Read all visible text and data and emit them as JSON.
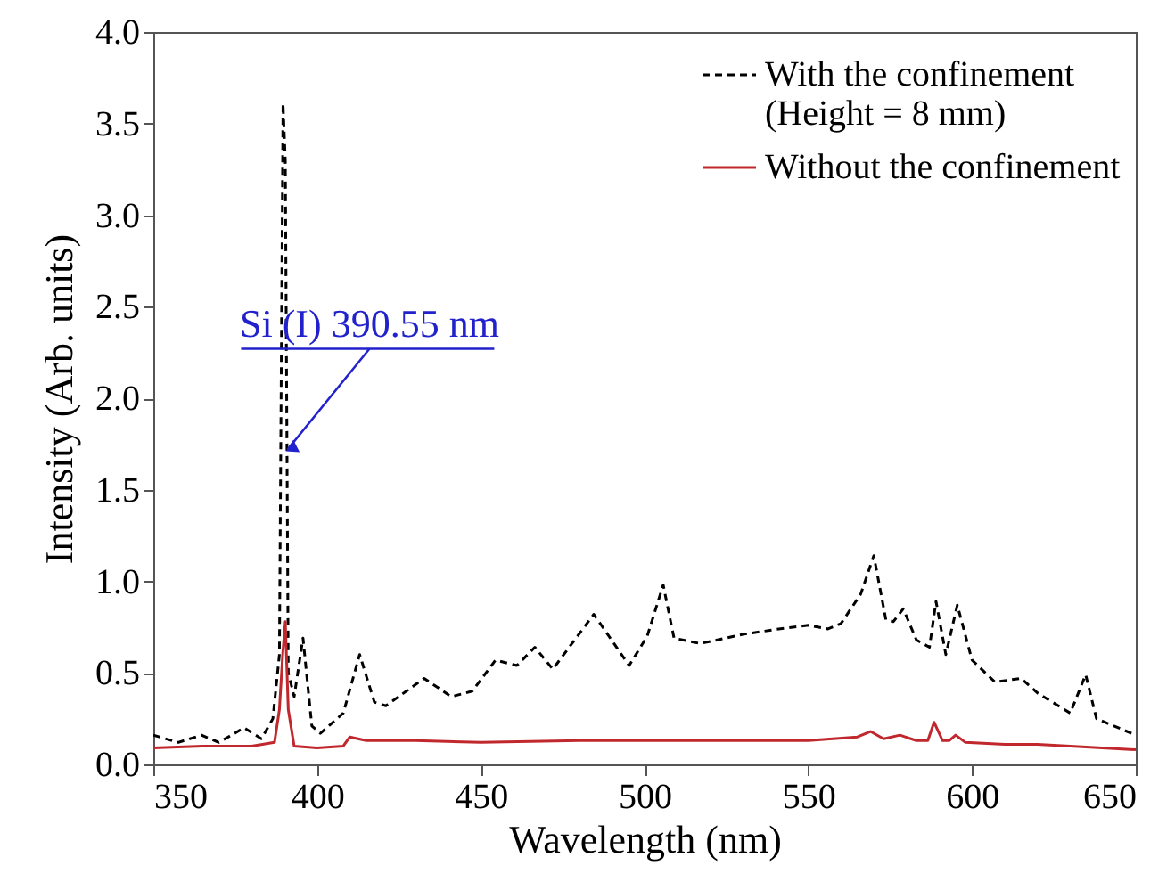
{
  "chart_data": {
    "type": "line",
    "xlabel": "Wavelength (nm)",
    "ylabel": "Intensity (Arb. units)",
    "xlim": [
      350,
      650
    ],
    "xticks": [
      350,
      400,
      450,
      500,
      550,
      600,
      650
    ],
    "ylim": [
      0,
      4
    ],
    "yticks": [
      {
        "value": 0,
        "label": "0.0"
      },
      {
        "value": 0.5,
        "label": "0.5"
      },
      {
        "value": 1,
        "label": "1.0"
      },
      {
        "value": 1.5,
        "label": "1.5"
      },
      {
        "value": 2,
        "label": "2.0"
      },
      {
        "value": 2.5,
        "label": "2.5"
      },
      {
        "value": 3,
        "label": "3.0"
      },
      {
        "value": 3.5,
        "label": "3.5"
      },
      {
        "value": 4,
        "label": "4.0"
      }
    ],
    "grid": false,
    "legend": "top right",
    "marker": "none",
    "annotations": [
      {
        "text": "Si (I) 390.55 nm",
        "x": 391,
        "y": 1.72
      }
    ],
    "series": [
      {
        "name": "With the confinement\n(Height = 8 mm)",
        "color": "#000000",
        "line_style": "dashed",
        "x": [
          350,
          357.6,
          364.7,
          370,
          377.7,
          383,
          386.5,
          388.5,
          389.6,
          390.3,
          391.2,
          393,
          395.7,
          398.4,
          401,
          408,
          413,
          417.5,
          421,
          432.7,
          441,
          447.4,
          454.5,
          461,
          466.5,
          472,
          484.5,
          495.3,
          500.8,
          505.7,
          509,
          517,
          530,
          541,
          550,
          556,
          560,
          566,
          570,
          573.7,
          576,
          579,
          583,
          587,
          589,
          592,
          595.5,
          600,
          607,
          615,
          620,
          630,
          634.7,
          638,
          650
        ],
        "values": [
          0.16,
          0.12,
          0.16,
          0.12,
          0.2,
          0.14,
          0.25,
          0.6,
          3.61,
          3.3,
          0.5,
          0.37,
          0.69,
          0.21,
          0.17,
          0.28,
          0.6,
          0.34,
          0.32,
          0.47,
          0.37,
          0.4,
          0.57,
          0.54,
          0.64,
          0.52,
          0.82,
          0.54,
          0.7,
          0.98,
          0.69,
          0.66,
          0.71,
          0.74,
          0.76,
          0.74,
          0.77,
          0.93,
          1.14,
          0.79,
          0.78,
          0.85,
          0.68,
          0.64,
          0.89,
          0.6,
          0.87,
          0.57,
          0.45,
          0.47,
          0.39,
          0.28,
          0.49,
          0.25,
          0.16
        ]
      },
      {
        "name": "Without the confinement",
        "color": "#c0282d",
        "line_style": "solid",
        "x": [
          350,
          365,
          380,
          387,
          388.5,
          389.5,
          390.3,
          391.2,
          393,
          400,
          408,
          410,
          415,
          430,
          450,
          480,
          500,
          530,
          550,
          565,
          569,
          573,
          578,
          583,
          586.5,
          588.4,
          591,
          593,
          595,
          598,
          610,
          620,
          630,
          650
        ],
        "values": [
          0.09,
          0.1,
          0.1,
          0.12,
          0.3,
          0.6,
          0.78,
          0.3,
          0.1,
          0.09,
          0.1,
          0.15,
          0.13,
          0.13,
          0.12,
          0.13,
          0.13,
          0.13,
          0.13,
          0.15,
          0.18,
          0.14,
          0.16,
          0.13,
          0.13,
          0.23,
          0.13,
          0.13,
          0.16,
          0.12,
          0.11,
          0.11,
          0.1,
          0.08
        ]
      }
    ]
  }
}
